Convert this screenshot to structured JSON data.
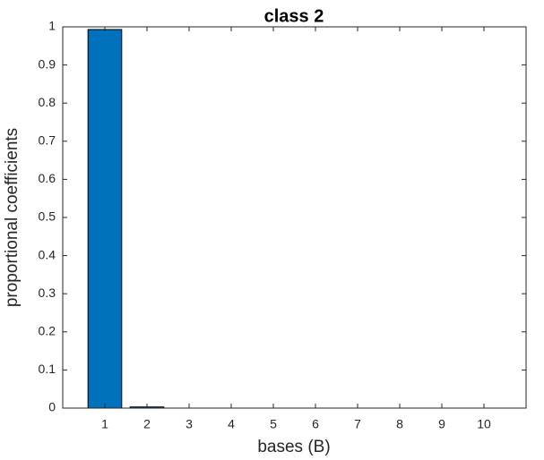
{
  "chart_data": {
    "type": "bar",
    "title": "class 2",
    "xlabel": "bases (B)",
    "ylabel": "proportional coefficients",
    "x": [
      1,
      2,
      3,
      4,
      5,
      6,
      7,
      8,
      9,
      10
    ],
    "values": [
      0.993,
      0.003,
      0,
      0,
      0,
      0,
      0,
      0,
      0,
      0
    ],
    "color": "#0072bd",
    "xlim": [
      0,
      11
    ],
    "xticks": [
      1,
      2,
      3,
      4,
      5,
      6,
      7,
      8,
      9,
      10
    ],
    "ylim": [
      0,
      1
    ],
    "yticks": [
      0,
      0.1,
      0.2,
      0.3,
      0.4,
      0.5,
      0.6,
      0.7,
      0.8,
      0.9,
      1
    ],
    "grid": false
  }
}
